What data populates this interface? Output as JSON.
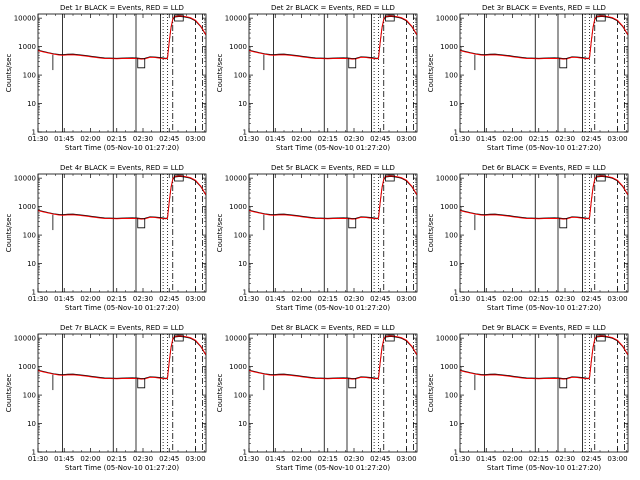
{
  "chart_data": [
    {
      "type": "line",
      "title": "Det 1r BLACK = Events, RED = LLD",
      "xlabel": "Start Time (05-Nov-10 01:27:20)",
      "ylabel": "Counts/sec"
    },
    {
      "type": "line",
      "title": "Det 2r BLACK = Events, RED = LLD",
      "xlabel": "Start Time (05-Nov-10 01:27:20)",
      "ylabel": "Counts/sec"
    },
    {
      "type": "line",
      "title": "Det 3r BLACK = Events, RED = LLD",
      "xlabel": "Start Time (05-Nov-10 01:27:20)",
      "ylabel": "Counts/sec"
    },
    {
      "type": "line",
      "title": "Det 4r BLACK = Events, RED = LLD",
      "xlabel": "Start Time (05-Nov-10 01:27:20)",
      "ylabel": "Counts/sec"
    },
    {
      "type": "line",
      "title": "Det 5r BLACK = Events, RED = LLD",
      "xlabel": "Start Time (05-Nov-10 01:27:20)",
      "ylabel": "Counts/sec"
    },
    {
      "type": "line",
      "title": "Det 6r BLACK = Events, RED = LLD",
      "xlabel": "Start Time (05-Nov-10 01:27:20)",
      "ylabel": "Counts/sec"
    },
    {
      "type": "line",
      "title": "Det 7r BLACK = Events, RED = LLD",
      "xlabel": "Start Time (05-Nov-10 01:27:20)",
      "ylabel": "Counts/sec"
    },
    {
      "type": "line",
      "title": "Det 8r BLACK = Events, RED = LLD",
      "xlabel": "Start Time (05-Nov-10 01:27:20)",
      "ylabel": "Counts/sec"
    },
    {
      "type": "line",
      "title": "Det 9r BLACK = Events, RED = LLD",
      "xlabel": "Start Time (05-Nov-10 01:27:20)",
      "ylabel": "Counts/sec"
    }
  ],
  "axes": {
    "xlim": [
      90,
      186
    ],
    "ylog_range": [
      1,
      14000
    ],
    "x_ticks": [
      {
        "value": 90,
        "label": "01:30"
      },
      {
        "value": 105,
        "label": "01:45"
      },
      {
        "value": 120,
        "label": "02:00"
      },
      {
        "value": 135,
        "label": "02:15"
      },
      {
        "value": 150,
        "label": "02:30"
      },
      {
        "value": 165,
        "label": "02:45"
      },
      {
        "value": 180,
        "label": "03:00"
      }
    ],
    "y_ticks": [
      {
        "value": 1,
        "label": "1"
      },
      {
        "value": 10,
        "label": "10"
      },
      {
        "value": 100,
        "label": "100"
      },
      {
        "value": 1000,
        "label": "1000"
      },
      {
        "value": 10000,
        "label": "10000"
      }
    ]
  },
  "series": {
    "events_color": "#000000",
    "lld_color": "#ff0000",
    "events": [
      [
        90,
        750
      ],
      [
        93,
        680
      ],
      [
        96,
        610
      ],
      [
        99,
        560
      ],
      [
        102,
        530
      ],
      [
        104,
        520
      ],
      [
        107,
        540
      ],
      [
        110,
        545
      ],
      [
        113,
        520
      ],
      [
        117,
        490
      ],
      [
        121,
        455
      ],
      [
        125,
        420
      ],
      [
        128,
        400
      ],
      [
        131,
        395
      ],
      [
        135,
        390
      ],
      [
        138,
        395
      ],
      [
        141,
        400
      ],
      [
        144,
        405
      ],
      [
        147,
        395
      ],
      [
        149,
        380
      ],
      [
        151,
        390
      ],
      [
        154,
        440
      ],
      [
        157,
        430
      ],
      [
        160,
        410
      ],
      [
        163,
        390
      ],
      [
        164,
        400
      ],
      [
        165,
        1500
      ],
      [
        166,
        4500
      ],
      [
        167,
        9000
      ],
      [
        168,
        11000
      ],
      [
        171,
        11500
      ],
      [
        174,
        11000
      ],
      [
        177,
        10000
      ],
      [
        180,
        8000
      ],
      [
        183,
        5000
      ],
      [
        186,
        2500
      ]
    ],
    "lld": [
      [
        90,
        720
      ],
      [
        93,
        650
      ],
      [
        96,
        590
      ],
      [
        99,
        540
      ],
      [
        102,
        505
      ],
      [
        104,
        495
      ],
      [
        107,
        510
      ],
      [
        110,
        515
      ],
      [
        113,
        495
      ],
      [
        117,
        465
      ],
      [
        121,
        430
      ],
      [
        125,
        400
      ],
      [
        128,
        380
      ],
      [
        131,
        378
      ],
      [
        135,
        372
      ],
      [
        138,
        378
      ],
      [
        141,
        382
      ],
      [
        144,
        386
      ],
      [
        147,
        376
      ],
      [
        149,
        362
      ],
      [
        151,
        370
      ],
      [
        154,
        420
      ],
      [
        157,
        410
      ],
      [
        160,
        390
      ],
      [
        163,
        372
      ],
      [
        164,
        385
      ],
      [
        165,
        1600
      ],
      [
        166,
        4800
      ],
      [
        167,
        9500
      ],
      [
        168,
        11500
      ],
      [
        171,
        12000
      ],
      [
        174,
        11500
      ],
      [
        177,
        10500
      ],
      [
        180,
        8500
      ],
      [
        183,
        5200
      ],
      [
        186,
        2600
      ]
    ]
  },
  "markers": {
    "solid": [
      104,
      133,
      146,
      160
    ],
    "dotted": [
      161.5,
      164
    ],
    "dashed": [
      180
    ],
    "dashdot": [
      167,
      184
    ]
  },
  "drops": [
    {
      "x": 98.5,
      "y_from": 520,
      "y_to": 150
    },
    {
      "x0": 147,
      "x1": 151,
      "y": 180
    }
  ],
  "saa_box": [
    168,
    173
  ]
}
